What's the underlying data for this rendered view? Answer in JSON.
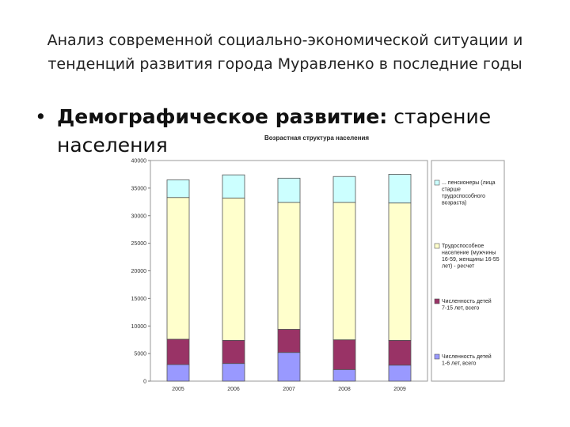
{
  "slide": {
    "title_line1": "Анализ современной социально-экономической ситуации и",
    "title_line2": "тенденций развития города Муравленко в последние годы",
    "bullet_bold": "Демографическое развитие:",
    "bullet_line1_rest": " старение",
    "bullet_line2": "населения"
  },
  "chart_data": {
    "type": "bar",
    "stacked": true,
    "title": "Возрастная структура населения",
    "categories": [
      "2005",
      "2006",
      "2007",
      "2008",
      "2009"
    ],
    "yticks": [
      "0",
      "5000",
      "10000",
      "15000",
      "20000",
      "25000",
      "30000",
      "35000",
      "40000"
    ],
    "ylim": [
      0,
      40000
    ],
    "grid": false,
    "legend_position": "right",
    "series": [
      {
        "name": "Численность детей 1-6 лет, всего",
        "color": "#9999ff",
        "values": [
          3000,
          3200,
          5200,
          2100,
          2900
        ]
      },
      {
        "name": "Численность детей 7-15 лет, всего",
        "color": "#993366",
        "values": [
          4600,
          4200,
          4200,
          5400,
          4500
        ]
      },
      {
        "name": "Трудоспособное население (мужчины 16-59, женщины 16-55 лет) - ресчет",
        "color": "#ffffcc",
        "values": [
          25700,
          25800,
          23000,
          24900,
          24900
        ]
      },
      {
        "name": "... пенсионеры (лица старше трудоспособного возраста)",
        "color": "#ccffff",
        "values": [
          3200,
          4200,
          4400,
          4700,
          5200
        ]
      }
    ]
  }
}
